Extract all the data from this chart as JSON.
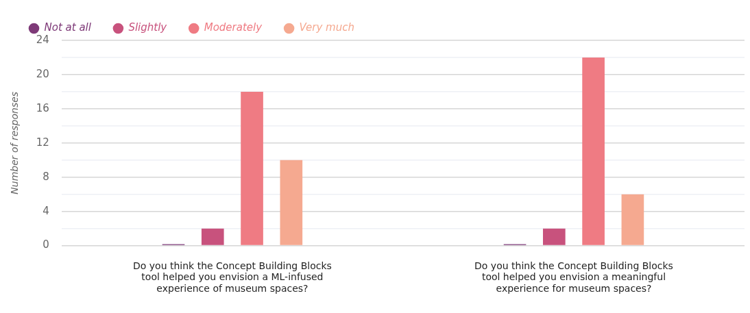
{
  "chart_data": {
    "type": "bar",
    "ylabel": "Number of responses",
    "categories": [
      "Do you think the Concept Building Blocks tool helped you envision a ML-infused experience of museum spaces?",
      "Do you think the Concept Building Blocks tool helped you envision a meaningful experience for museum spaces?"
    ],
    "series": [
      {
        "name": "Not at all",
        "color": "#7e3a78",
        "values": [
          0,
          0
        ]
      },
      {
        "name": "Slightly",
        "color": "#c8527d",
        "values": [
          2,
          2
        ]
      },
      {
        "name": "Moderately",
        "color": "#ef7b83",
        "values": [
          18,
          22
        ]
      },
      {
        "name": "Very much",
        "color": "#f5a990",
        "values": [
          10,
          6
        ]
      }
    ],
    "ylim": [
      0,
      24
    ],
    "yticks": [
      0,
      {
        "value": 2,
        "label": null
      },
      4,
      {
        "value": 6,
        "label": null
      },
      8,
      {
        "value": 10,
        "label": null
      },
      12,
      {
        "value": 14,
        "label": null
      },
      16,
      {
        "value": 18,
        "label": null
      },
      20,
      {
        "value": 22,
        "label": null
      },
      24
    ],
    "grid": true,
    "legend": "top left"
  }
}
